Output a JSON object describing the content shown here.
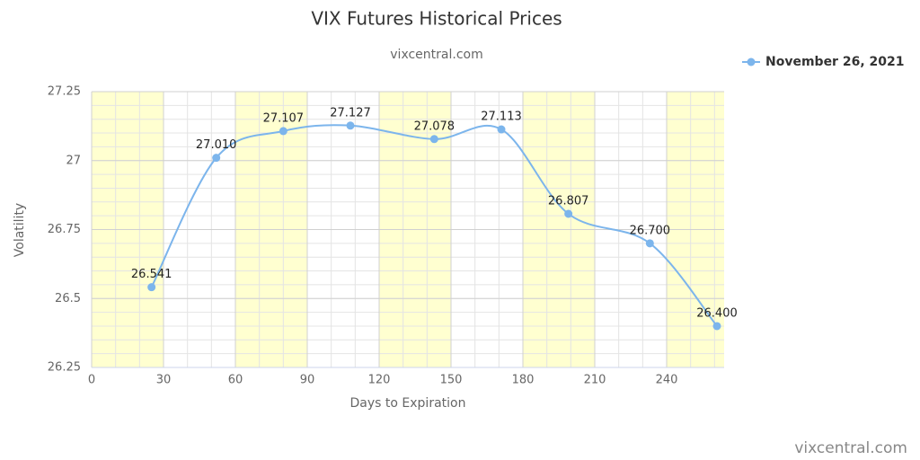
{
  "chart_data": {
    "type": "line",
    "title": "VIX Futures Historical Prices",
    "subtitle": "vixcentral.com",
    "x_label": "Days to Expiration",
    "y_label": "Volatility",
    "credits": "vixcentral.com",
    "x": [
      25,
      52,
      80,
      108,
      143,
      171,
      199,
      233,
      261
    ],
    "series": [
      {
        "name": "November 26, 2021",
        "color": "#7cb5ec",
        "values": [
          26.541,
          27.01,
          27.107,
          27.127,
          27.078,
          27.113,
          26.807,
          26.7,
          26.4
        ],
        "value_labels": [
          "26.541",
          "27.010",
          "27.107",
          "27.127",
          "27.078",
          "27.113",
          "26.807",
          "26.700",
          "26.400"
        ]
      }
    ],
    "xlim": [
      0,
      264
    ],
    "xticks": [
      0,
      30,
      60,
      90,
      120,
      150,
      180,
      210,
      240
    ],
    "ylim": [
      26.25,
      27.25
    ],
    "yticks": [
      26.25,
      26.5,
      26.75,
      27,
      27.25
    ],
    "grid": true,
    "legend": "top-right"
  }
}
